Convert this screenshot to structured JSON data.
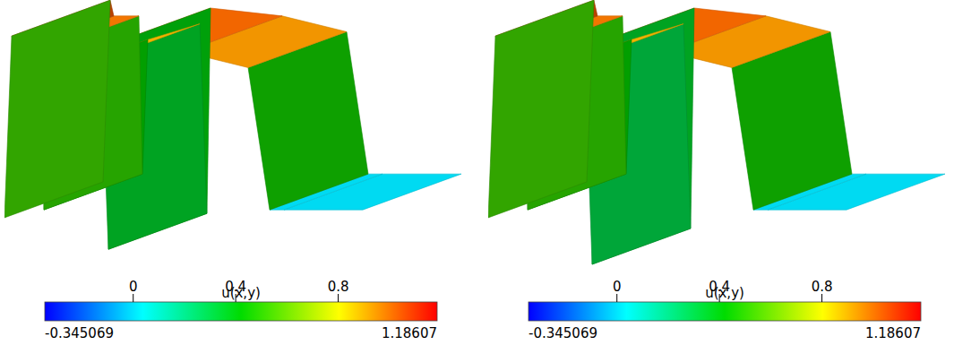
{
  "chart_data": [
    {
      "type": "surface",
      "x": [
        0,
        0.02,
        0.03,
        0.1,
        0.11,
        0.125,
        0.27,
        0.29,
        0.3,
        0.5,
        0.68,
        0.74,
        0.78,
        1
      ],
      "values": [
        -0.05,
        1.1,
        1.0,
        1.0,
        0.0,
        0.85,
        0.95,
        -0.25,
        1.05,
        1.0,
        0.9,
        0.0,
        0.0,
        0.0
      ],
      "xlim": [
        0,
        1
      ],
      "tick_labels": false,
      "colorbar": {
        "title": "u(x,y)",
        "range": [
          -0.345069,
          1.18607
        ],
        "ticks": [
          0,
          0.4,
          0.8
        ]
      }
    },
    {
      "type": "surface",
      "x": [
        0,
        0.02,
        0.03,
        0.1,
        0.11,
        0.125,
        0.27,
        0.29,
        0.3,
        0.5,
        0.68,
        0.74,
        0.78,
        1
      ],
      "values": [
        -0.05,
        1.1,
        1.0,
        1.0,
        0.0,
        0.85,
        0.95,
        -0.345,
        1.05,
        1.0,
        0.9,
        0.0,
        0.0,
        0.0
      ],
      "xlim": [
        0,
        1
      ],
      "tick_labels": false,
      "colorbar": {
        "title": "u(x,y)",
        "range": [
          -0.345069,
          1.18607
        ],
        "ticks": [
          0,
          0.4,
          0.8
        ]
      }
    }
  ]
}
